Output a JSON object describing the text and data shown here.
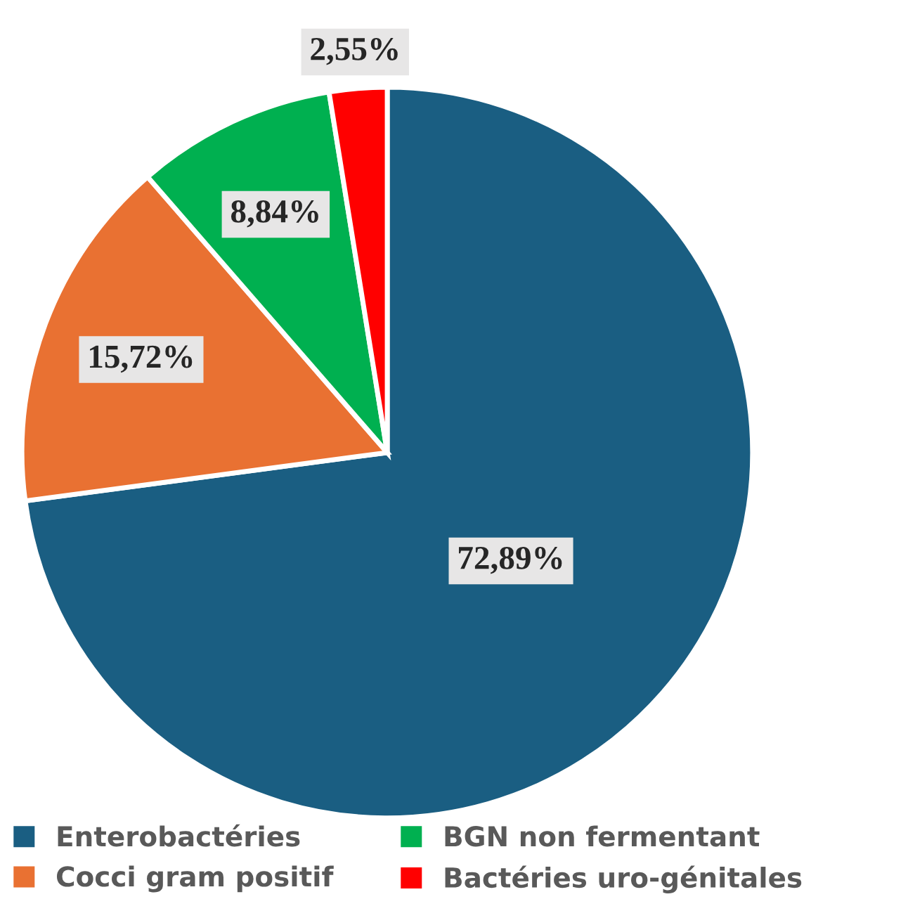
{
  "chart_data": {
    "type": "pie",
    "categories": [
      "Enterobactéries",
      "Cocci gram positif",
      "BGN non fermentant",
      "Bactéries uro-génitales"
    ],
    "values": [
      72.89,
      15.72,
      8.84,
      2.55
    ],
    "value_labels": [
      "72,89%",
      "15,72%",
      "8,84%",
      "2,55%"
    ],
    "colors": [
      "#1a5e82",
      "#e97132",
      "#00b050",
      "#ff0000"
    ],
    "legend": "bottom"
  }
}
